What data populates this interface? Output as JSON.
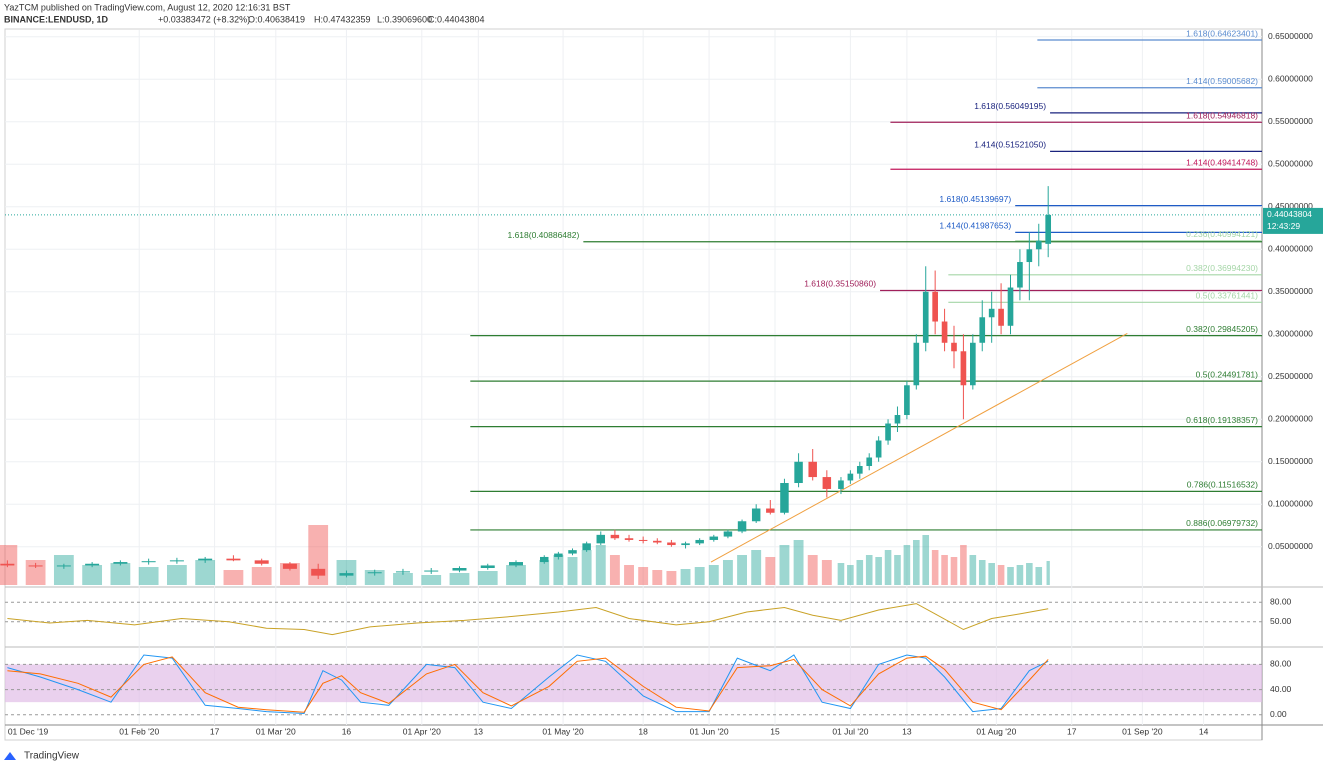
{
  "chart_data": {
    "type": "candlestick",
    "publisher": "YazTCM published on TradingView.com, August 12, 2020 12:16:31 BST",
    "symbol": "BINANCE:LENDUSD, 1D",
    "ohlc": [
      {
        "value": 0.40638419,
        "label": "O:0.40638419"
      },
      {
        "value": 0.47432359,
        "label": "H:0.47432359"
      },
      {
        "value": 0.390696,
        "label": "L:0.39069600"
      },
      {
        "value": 0.44043804,
        "label": "C:0.44043804"
      }
    ],
    "change": "+0.03383472 (+8.32%)",
    "up_color": "#26a69a",
    "down_color": "#ef5350",
    "x": [
      3,
      9,
      15,
      21,
      27,
      33,
      39,
      45,
      51,
      57,
      63,
      69,
      75,
      81,
      87,
      93,
      99,
      105,
      111,
      117,
      120,
      123,
      126,
      129,
      132,
      135,
      138,
      141,
      144,
      147,
      150,
      153,
      156,
      159,
      162,
      165,
      168,
      171,
      174,
      177,
      180,
      182,
      184,
      186,
      188,
      190,
      192,
      194,
      196,
      198,
      200,
      202,
      204,
      206,
      208,
      210,
      212,
      214,
      216,
      218,
      220,
      222,
      224
    ],
    "open": [
      0.03,
      0.028,
      0.027,
      0.028,
      0.03,
      0.032,
      0.033,
      0.034,
      0.036,
      0.034,
      0.03,
      0.024,
      0.016,
      0.019,
      0.02,
      0.021,
      0.022,
      0.025,
      0.028,
      0.032,
      0.038,
      0.042,
      0.046,
      0.054,
      0.064,
      0.06,
      0.058,
      0.057,
      0.055,
      0.052,
      0.054,
      0.058,
      0.062,
      0.068,
      0.08,
      0.095,
      0.09,
      0.125,
      0.15,
      0.132,
      0.118,
      0.128,
      0.136,
      0.145,
      0.155,
      0.175,
      0.195,
      0.205,
      0.24,
      0.29,
      0.35,
      0.315,
      0.29,
      0.28,
      0.24,
      0.29,
      0.32,
      0.33,
      0.31,
      0.355,
      0.385,
      0.4,
      0.40638419
    ],
    "high": [
      0.034,
      0.031,
      0.03,
      0.032,
      0.034,
      0.036,
      0.037,
      0.038,
      0.04,
      0.036,
      0.032,
      0.03,
      0.022,
      0.023,
      0.024,
      0.025,
      0.027,
      0.03,
      0.034,
      0.04,
      0.044,
      0.048,
      0.056,
      0.068,
      0.07,
      0.064,
      0.062,
      0.06,
      0.058,
      0.056,
      0.06,
      0.064,
      0.07,
      0.082,
      0.1,
      0.105,
      0.13,
      0.16,
      0.165,
      0.14,
      0.132,
      0.14,
      0.15,
      0.16,
      0.18,
      0.2,
      0.215,
      0.245,
      0.3,
      0.38,
      0.375,
      0.33,
      0.31,
      0.3,
      0.3,
      0.34,
      0.35,
      0.36,
      0.37,
      0.4,
      0.42,
      0.43,
      0.47432359
    ],
    "low": [
      0.026,
      0.025,
      0.024,
      0.026,
      0.028,
      0.029,
      0.03,
      0.031,
      0.033,
      0.028,
      0.022,
      0.012,
      0.014,
      0.016,
      0.017,
      0.018,
      0.02,
      0.023,
      0.026,
      0.03,
      0.035,
      0.04,
      0.044,
      0.052,
      0.058,
      0.056,
      0.054,
      0.053,
      0.05,
      0.048,
      0.052,
      0.056,
      0.06,
      0.066,
      0.078,
      0.088,
      0.088,
      0.12,
      0.128,
      0.108,
      0.112,
      0.124,
      0.13,
      0.14,
      0.15,
      0.17,
      0.185,
      0.2,
      0.235,
      0.28,
      0.3,
      0.28,
      0.26,
      0.2,
      0.235,
      0.28,
      0.29,
      0.3,
      0.3,
      0.34,
      0.34,
      0.38,
      0.390696
    ],
    "close": [
      0.028,
      0.027,
      0.028,
      0.03,
      0.032,
      0.033,
      0.034,
      0.036,
      0.034,
      0.03,
      0.024,
      0.016,
      0.019,
      0.02,
      0.021,
      0.022,
      0.025,
      0.028,
      0.032,
      0.038,
      0.042,
      0.046,
      0.054,
      0.064,
      0.06,
      0.058,
      0.057,
      0.055,
      0.052,
      0.054,
      0.058,
      0.062,
      0.068,
      0.08,
      0.095,
      0.09,
      0.125,
      0.15,
      0.132,
      0.118,
      0.128,
      0.136,
      0.145,
      0.155,
      0.175,
      0.195,
      0.205,
      0.24,
      0.29,
      0.35,
      0.315,
      0.29,
      0.28,
      0.24,
      0.29,
      0.32,
      0.33,
      0.31,
      0.355,
      0.385,
      0.4,
      0.41,
      0.44043804
    ],
    "volume": [
      40,
      25,
      30,
      20,
      22,
      18,
      20,
      25,
      15,
      18,
      22,
      60,
      25,
      15,
      12,
      10,
      12,
      14,
      20,
      25,
      30,
      28,
      35,
      40,
      30,
      20,
      18,
      15,
      14,
      16,
      18,
      20,
      25,
      30,
      35,
      28,
      40,
      45,
      30,
      25,
      22,
      20,
      25,
      30,
      28,
      35,
      30,
      40,
      45,
      50,
      35,
      30,
      28,
      40,
      30,
      25,
      22,
      20,
      18,
      20,
      22,
      18,
      24
    ],
    "xlim": [
      2.5,
      269.4
    ],
    "xticks": [
      {
        "value": 31,
        "label": "01 Feb '20"
      },
      {
        "value": 47,
        "label": "17"
      },
      {
        "value": 60,
        "label": "01 Mar '20"
      },
      {
        "value": 75,
        "label": "16"
      },
      {
        "value": 91,
        "label": "01 Apr '20"
      },
      {
        "value": 103,
        "label": "13"
      },
      {
        "value": 121,
        "label": "01 May '20"
      },
      {
        "value": 138,
        "label": "18"
      },
      {
        "value": 152,
        "label": "01 Jun '20"
      },
      {
        "value": 166,
        "label": "15"
      },
      {
        "value": 182,
        "label": "01 Jul '20"
      },
      {
        "value": 194,
        "label": "13"
      },
      {
        "value": 213,
        "label": "01 Aug '20"
      },
      {
        "value": 229,
        "label": "17"
      },
      {
        "value": 244,
        "label": "01 Sep '20"
      },
      {
        "value": 257,
        "label": "14"
      }
    ],
    "x_start_label": "01 Dec '19",
    "ylim": [
      0.005,
      0.658
    ],
    "yticks": [
      {
        "value": 0.05,
        "label": "0.05000000"
      },
      {
        "value": 0.1,
        "label": "0.10000000"
      },
      {
        "value": 0.15,
        "label": "0.15000000"
      },
      {
        "value": 0.2,
        "label": "0.20000000"
      },
      {
        "value": 0.25,
        "label": "0.25000000"
      },
      {
        "value": 0.3,
        "label": "0.30000000"
      },
      {
        "value": 0.35,
        "label": "0.35000000"
      },
      {
        "value": 0.4,
        "label": "0.40000000"
      },
      {
        "value": 0.45,
        "label": "0.45000000"
      },
      {
        "value": 0.5,
        "label": "0.50000000"
      },
      {
        "value": 0.55,
        "label": "0.55000000"
      },
      {
        "value": 0.6,
        "label": "0.60000000"
      },
      {
        "value": 0.65,
        "label": "0.65000000"
      }
    ],
    "last_price": {
      "value": 0.44043804,
      "label": "0.44043804"
    },
    "countdown": "12:43:29",
    "levels": [
      {
        "value": 0.64623401,
        "label": "1.618(0.64623401)",
        "color": "#5b8ccf",
        "from": 221.7,
        "side": "right"
      },
      {
        "value": 0.59005682,
        "label": "1.414(0.59005682)",
        "color": "#5b8ccf",
        "from": 221.7,
        "side": "right"
      },
      {
        "value": 0.56049195,
        "label": "1.618(0.56049195)",
        "color": "#1a237e",
        "from": 224.4,
        "side": "left"
      },
      {
        "value": 0.54946818,
        "label": "1.618(0.54946818)",
        "color": "#a0205a",
        "from": 190.5,
        "side": "right"
      },
      {
        "value": 0.5152105,
        "label": "1.414(0.51521050)",
        "color": "#1a237e",
        "from": 224.4,
        "side": "left"
      },
      {
        "value": 0.49414748,
        "label": "1.414(0.49414748)",
        "color": "#c2185b",
        "from": 190.5,
        "side": "right"
      },
      {
        "value": 0.45139697,
        "label": "1.618(0.45139697)",
        "color": "#1e5bc6",
        "from": 217,
        "side": "left"
      },
      {
        "value": 0.41987653,
        "label": "1.414(0.41987653)",
        "color": "#1e5bc6",
        "from": 217,
        "side": "left"
      },
      {
        "value": 0.40994121,
        "label": "0.236(0.40994121)",
        "color": "#a5d6a7",
        "from": 217,
        "side": "right"
      },
      {
        "value": 0.40886482,
        "label": "1.618(0.40886482)",
        "color": "#2e7d32",
        "from": 125.3,
        "side": "left"
      },
      {
        "value": 0.3699423,
        "label": "0.382(0.36994230)",
        "color": "#a5d6a7",
        "from": 202.8,
        "side": "right"
      },
      {
        "value": 0.3515086,
        "label": "1.618(0.35150860)",
        "color": "#a0205a",
        "from": 188.3,
        "side": "left"
      },
      {
        "value": 0.33761441,
        "label": "0.5(0.33761441)",
        "color": "#a5d6a7",
        "from": 202.8,
        "side": "right"
      },
      {
        "value": 0.29845205,
        "label": "0.382(0.29845205)",
        "color": "#2e7d32",
        "from": 101.3,
        "side": "right"
      },
      {
        "value": 0.24491781,
        "label": "0.5(0.24491781)",
        "color": "#2e7d32",
        "from": 101.3,
        "side": "right"
      },
      {
        "value": 0.19138357,
        "label": "0.618(0.19138357)",
        "color": "#2e7d32",
        "from": 101.3,
        "side": "right"
      },
      {
        "value": 0.11516532,
        "label": "0.786(0.11516532)",
        "color": "#2e7d32",
        "from": 101.3,
        "side": "right"
      },
      {
        "value": 0.06979732,
        "label": "0.886(0.06979732)",
        "color": "#2e7d32",
        "from": 101.3,
        "side": "right"
      }
    ],
    "trendline": {
      "x": [
        152.4,
        240.8
      ],
      "y": [
        0.032,
        0.301
      ],
      "color": "#f0a040"
    },
    "rsi": {
      "color": "#c9a227",
      "ylim": [
        14,
        100.5
      ],
      "yticks": [
        {
          "value": 80,
          "label": "80.00"
        },
        {
          "value": 50,
          "label": "50.00"
        }
      ],
      "x": [
        3,
        12,
        20,
        30,
        40,
        50,
        58,
        66,
        72,
        80,
        90,
        100,
        110,
        120,
        128,
        135,
        145,
        152,
        160,
        168,
        174,
        180,
        188,
        196,
        200,
        206,
        212,
        218,
        224
      ],
      "values": [
        55,
        48,
        52,
        45,
        55,
        50,
        40,
        38,
        30,
        42,
        48,
        52,
        58,
        65,
        72,
        55,
        45,
        50,
        65,
        72,
        60,
        52,
        68,
        78,
        62,
        38,
        55,
        62,
        70
      ]
    },
    "stoch": {
      "ylim": [
        -14.7,
        104.5
      ],
      "yticks": [
        {
          "value": 80,
          "label": "80.00"
        },
        {
          "value": 40,
          "label": "40.00"
        },
        {
          "value": 0,
          "label": "0.00"
        }
      ],
      "x": [
        3,
        10,
        18,
        25,
        32,
        38,
        45,
        52,
        58,
        66,
        70,
        74,
        78,
        84,
        92,
        98,
        104,
        110,
        118,
        124,
        130,
        138,
        145,
        152,
        158,
        165,
        170,
        176,
        182,
        188,
        194,
        198,
        202,
        208,
        214,
        220,
        224
      ],
      "series": [
        {
          "color": "#2196f3",
          "values": [
            75,
            60,
            40,
            20,
            95,
            90,
            15,
            10,
            5,
            2,
            70,
            55,
            20,
            15,
            80,
            75,
            20,
            10,
            60,
            95,
            85,
            30,
            5,
            5,
            90,
            70,
            95,
            20,
            10,
            80,
            95,
            90,
            60,
            5,
            10,
            70,
            85
          ]
        },
        {
          "color": "#ff6d00",
          "values": [
            70,
            65,
            50,
            28,
            80,
            92,
            35,
            12,
            8,
            4,
            50,
            62,
            35,
            18,
            65,
            80,
            35,
            14,
            45,
            85,
            90,
            45,
            12,
            6,
            75,
            78,
            88,
            40,
            14,
            65,
            90,
            93,
            72,
            20,
            8,
            55,
            88
          ]
        }
      ]
    }
  }
}
